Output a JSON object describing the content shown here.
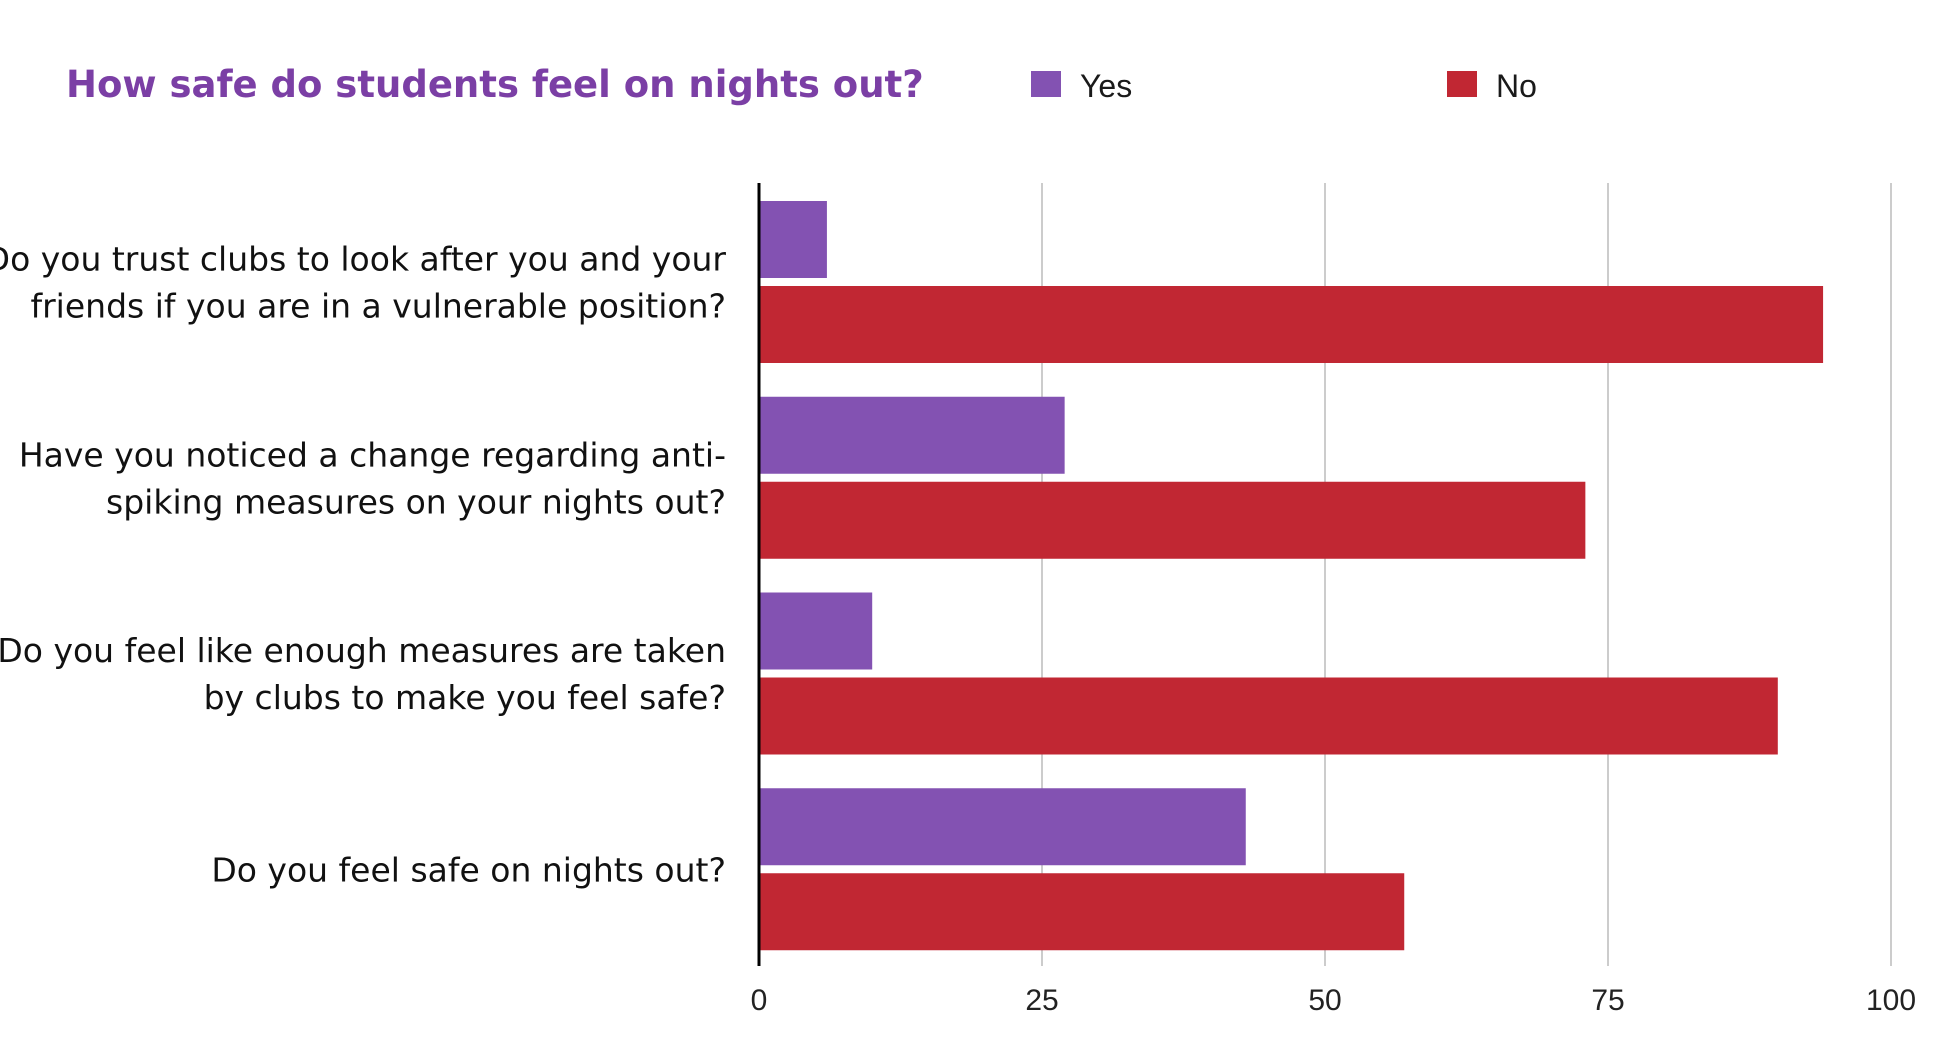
{
  "chart_data": {
    "type": "bar",
    "orientation": "horizontal",
    "title": "How safe do students feel on nights out?",
    "title_color": "#7b3fa5",
    "legend_position": "top",
    "xlabel": "",
    "ylabel": "",
    "xlim": [
      0,
      100
    ],
    "x_ticks": [
      "0",
      "25",
      "50",
      "75",
      "100"
    ],
    "grid": true,
    "categories": [
      [
        "Do you trust clubs to look after you and your",
        "friends if you are in a vulnerable position?"
      ],
      [
        "Have you noticed a change regarding anti-",
        "spiking measures on your nights out?"
      ],
      [
        "Do you feel like enough measures are taken",
        "by clubs to make you feel safe?"
      ],
      [
        "Do you feel safe on nights out?"
      ]
    ],
    "series": [
      {
        "name": "Yes",
        "color": "#8352b2",
        "values": [
          6,
          27,
          10,
          43
        ]
      },
      {
        "name": "No",
        "color": "#c12733",
        "values": [
          94,
          73,
          90,
          57
        ]
      }
    ]
  }
}
